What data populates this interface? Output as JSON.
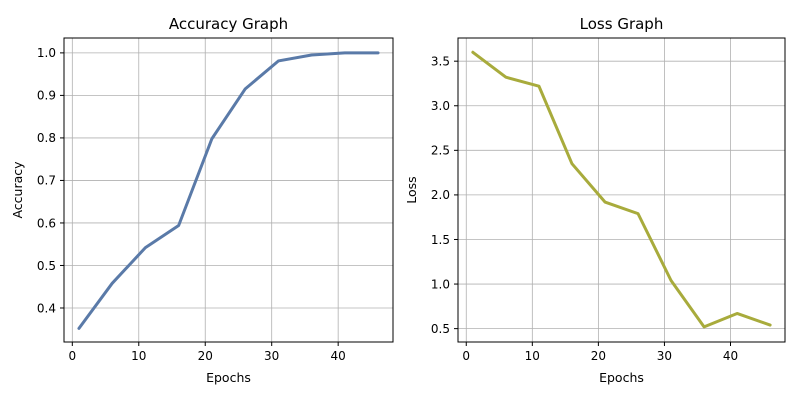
{
  "chart_data": [
    {
      "type": "line",
      "title": "Accuracy Graph",
      "xlabel": "Epochs",
      "ylabel": "Accuracy",
      "xlim": [
        -1.25,
        48.25
      ],
      "ylim": [
        0.32,
        1.035
      ],
      "xticks": [
        0,
        10,
        20,
        30,
        40
      ],
      "yticks": [
        0.4,
        0.5,
        0.6,
        0.7,
        0.8,
        0.9,
        1.0
      ],
      "ytick_format": 1,
      "grid": true,
      "x": [
        1,
        6,
        11,
        16,
        21,
        26,
        31,
        36,
        41,
        46
      ],
      "series": [
        {
          "values": [
            0.352,
            0.458,
            0.542,
            0.594,
            0.798,
            0.915,
            0.981,
            0.995,
            1.0,
            1.0
          ],
          "color": "#5a7aa8"
        }
      ]
    },
    {
      "type": "line",
      "title": "Loss Graph",
      "xlabel": "Epochs",
      "ylabel": "Loss",
      "xlim": [
        -1.25,
        48.25
      ],
      "ylim": [
        0.35,
        3.76
      ],
      "xticks": [
        0,
        10,
        20,
        30,
        40
      ],
      "yticks": [
        0.5,
        1.0,
        1.5,
        2.0,
        2.5,
        3.0,
        3.5
      ],
      "ytick_format": 1,
      "grid": true,
      "x": [
        1,
        6,
        11,
        16,
        21,
        26,
        31,
        36,
        41,
        46
      ],
      "series": [
        {
          "values": [
            3.6,
            3.32,
            3.22,
            2.35,
            1.92,
            1.79,
            1.04,
            0.52,
            0.67,
            0.54
          ],
          "color": "#a8ab3c"
        }
      ]
    }
  ]
}
